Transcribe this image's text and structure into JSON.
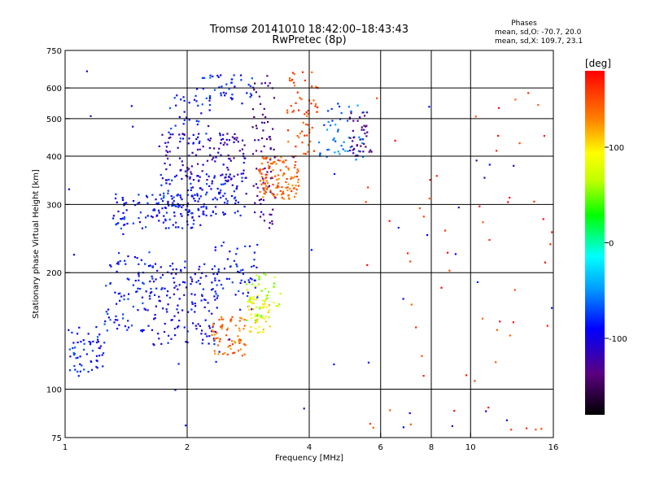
{
  "chart_data": {
    "type": "scatter",
    "title": "Tromsø 20141010 18:42:00–18:43:43",
    "subtitle": "RwPretec (8p)",
    "stats": {
      "heading": "Phases",
      "line1": "mean, sd,O: -70.7, 20.0",
      "line2": "mean, sd,X: 109.7, 23.1"
    },
    "xlabel": "Frequency [MHz]",
    "ylabel": "Stationary phase Virtual Height [km]",
    "xscale": "log",
    "yscale": "log",
    "xlim": [
      1,
      16
    ],
    "ylim": [
      75,
      750
    ],
    "xticks": [
      1,
      2,
      4,
      6,
      8,
      10,
      16
    ],
    "yticks": [
      75,
      100,
      200,
      300,
      400,
      500,
      600,
      750
    ],
    "xgrid": [
      2,
      4,
      6,
      8,
      10
    ],
    "ygrid": [
      100,
      200,
      300,
      400,
      500,
      600
    ],
    "colorbar": {
      "label": "[deg]",
      "min": -180,
      "max": 180,
      "ticks": [
        -100,
        0,
        100
      ]
    },
    "clusters": [
      {
        "x": [
          1.0,
          1.25
        ],
        "y": [
          108,
          145
        ],
        "phase": -85,
        "count": 60
      },
      {
        "x": [
          1.25,
          1.65
        ],
        "y": [
          140,
          230
        ],
        "phase": -85,
        "count": 90
      },
      {
        "x": [
          1.65,
          2.4
        ],
        "y": [
          130,
          215
        ],
        "phase": -95,
        "count": 140
      },
      {
        "x": [
          2.3,
          3.0
        ],
        "y": [
          160,
          240
        ],
        "phase": -85,
        "count": 60
      },
      {
        "x": [
          2.3,
          2.8
        ],
        "y": [
          122,
          155
        ],
        "phase": 140,
        "count": 70
      },
      {
        "x": [
          2.8,
          3.2
        ],
        "y": [
          140,
          175
        ],
        "phase": 95,
        "count": 50
      },
      {
        "x": [
          2.8,
          3.4
        ],
        "y": [
          150,
          200
        ],
        "phase": 60,
        "count": 40
      },
      {
        "x": [
          1.3,
          2.2
        ],
        "y": [
          260,
          320
        ],
        "phase": -85,
        "count": 110
      },
      {
        "x": [
          1.7,
          2.8
        ],
        "y": [
          280,
          360
        ],
        "phase": -88,
        "count": 130
      },
      {
        "x": [
          1.7,
          2.8
        ],
        "y": [
          340,
          460
        ],
        "phase": -115,
        "count": 120
      },
      {
        "x": [
          1.8,
          2.3
        ],
        "y": [
          430,
          580
        ],
        "phase": -85,
        "count": 40
      },
      {
        "x": [
          2.1,
          2.9
        ],
        "y": [
          560,
          650
        ],
        "phase": -80,
        "count": 40
      },
      {
        "x": [
          2.9,
          3.3
        ],
        "y": [
          260,
          650
        ],
        "phase": -130,
        "count": 80
      },
      {
        "x": [
          3.0,
          3.8
        ],
        "y": [
          310,
          400
        ],
        "phase": 140,
        "count": 120
      },
      {
        "x": [
          3.5,
          4.2
        ],
        "y": [
          400,
          660
        ],
        "phase": 150,
        "count": 60
      },
      {
        "x": [
          4.2,
          5.5
        ],
        "y": [
          390,
          550
        ],
        "phase": -60,
        "count": 50
      },
      {
        "x": [
          5.0,
          5.7
        ],
        "y": [
          400,
          520
        ],
        "phase": -130,
        "count": 40
      },
      {
        "x": [
          5.5,
          16
        ],
        "y": [
          75,
          650
        ],
        "phase": 160,
        "count": 60
      },
      {
        "x": [
          1.0,
          16
        ],
        "y": [
          75,
          700
        ],
        "phase": -100,
        "count": 50
      }
    ]
  }
}
